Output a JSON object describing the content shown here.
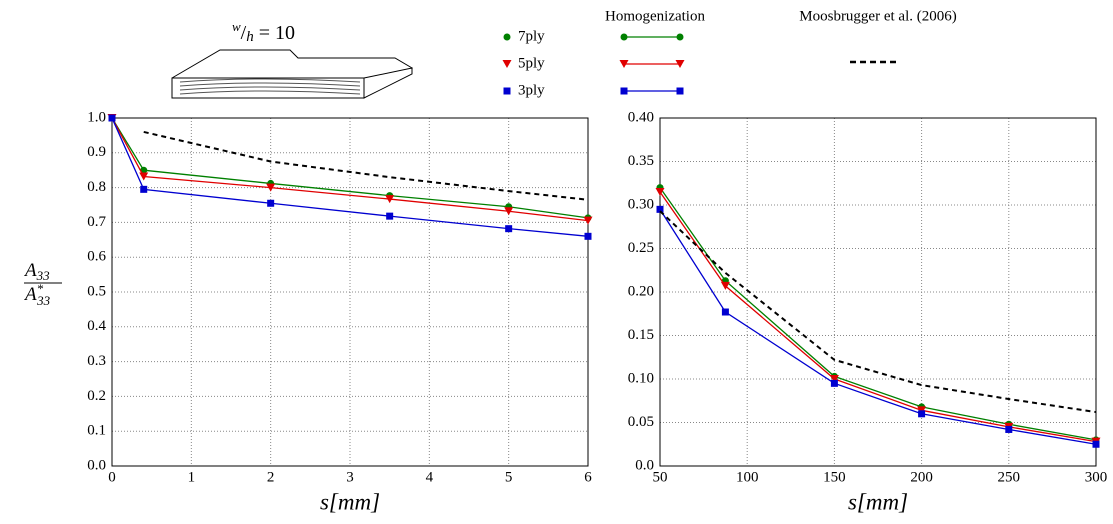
{
  "chart_data": [
    {
      "type": "line",
      "annotation": [
        "w",
        "/",
        "h",
        " = 10"
      ],
      "legend_title": "Homogenization",
      "ylabel": {
        "numerator": [
          "A",
          "33"
        ],
        "denominator": [
          "A",
          "*",
          "33"
        ]
      },
      "xlabel": "s[mm]",
      "x": [
        0,
        0.4,
        2,
        3.5,
        5,
        6
      ],
      "xlim": [
        0,
        6
      ],
      "xticks": [
        0,
        1,
        2,
        3,
        4,
        5,
        6
      ],
      "ylim": [
        0,
        1
      ],
      "yticks": [
        {
          "value": 0,
          "label": "0.0"
        },
        0.1,
        0.2,
        0.3,
        0.4,
        0.5,
        0.6,
        0.7,
        0.8,
        0.9,
        {
          "value": 1,
          "label": "1.0"
        }
      ],
      "grid": true,
      "series": [
        {
          "name": "7ply",
          "color": "#008000",
          "marker": "circle",
          "values": [
            1.0,
            0.85,
            0.812,
            0.777,
            0.745,
            0.713
          ]
        },
        {
          "name": "5ply",
          "color": "#e00000",
          "marker": "triangle",
          "values": [
            1.0,
            0.832,
            0.8,
            0.767,
            0.732,
            0.705
          ]
        },
        {
          "name": "3ply",
          "color": "#0000d0",
          "marker": "square",
          "values": [
            1.0,
            0.795,
            0.755,
            0.718,
            0.682,
            0.66
          ]
        },
        {
          "name": "Moosbrugger et al. (2006)",
          "color": "#000000",
          "style": "dashed",
          "values": [
            null,
            0.96,
            0.875,
            0.83,
            0.79,
            0.765
          ]
        }
      ]
    },
    {
      "type": "line",
      "xlabel": "s[mm]",
      "x": [
        50,
        87.5,
        150,
        200,
        250,
        300
      ],
      "xlim": [
        50,
        300
      ],
      "xticks": [
        50,
        100,
        150,
        200,
        250,
        300
      ],
      "ylim": [
        0,
        0.4
      ],
      "yticks": [
        {
          "value": 0,
          "label": "0.0"
        },
        0.05,
        {
          "value": 0.1,
          "label": "0.10"
        },
        0.15,
        {
          "value": 0.2,
          "label": "0.20"
        },
        0.25,
        {
          "value": 0.3,
          "label": "0.30"
        },
        0.35,
        {
          "value": 0.4,
          "label": "0.40"
        }
      ],
      "grid": true,
      "series": [
        {
          "color": "#008000",
          "marker": "circle",
          "values": [
            0.32,
            0.213,
            0.103,
            0.068,
            0.048,
            0.03
          ]
        },
        {
          "color": "#e00000",
          "marker": "triangle",
          "values": [
            0.315,
            0.207,
            0.1,
            0.064,
            0.045,
            0.028
          ]
        },
        {
          "color": "#0000d0",
          "marker": "square",
          "values": [
            0.295,
            0.177,
            0.095,
            0.06,
            0.042,
            0.025
          ]
        },
        {
          "color": "#000000",
          "style": "dashed",
          "values": [
            0.293,
            0.222,
            0.122,
            0.093,
            0.077,
            0.062
          ]
        }
      ]
    }
  ]
}
